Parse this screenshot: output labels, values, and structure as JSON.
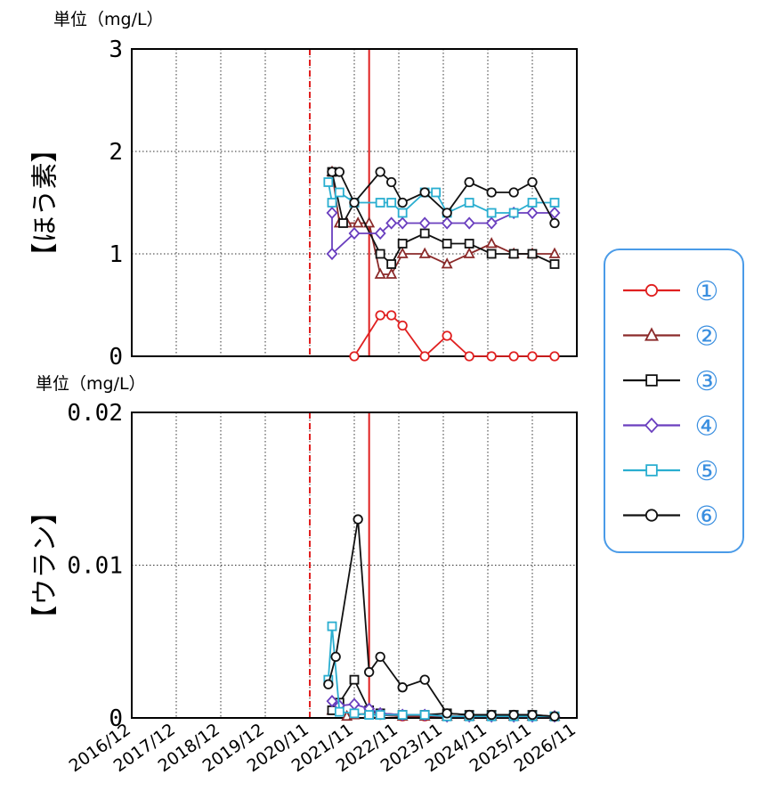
{
  "chart_data": [
    {
      "type": "line",
      "ylabel": "【ほう素】",
      "unit": "単位（mg/L）",
      "ylim": [
        0,
        3
      ],
      "yticks": [
        "0",
        "1",
        "2",
        "3"
      ],
      "ytick_values": [
        0,
        1,
        2,
        3
      ],
      "x_ticks": [
        "2016/12",
        "2017/12",
        "2018/12",
        "2019/12",
        "2020/11",
        "2021/11",
        "2022/11",
        "2023/11",
        "2024/11",
        "2025/11",
        "2026/11"
      ],
      "reference_lines": [
        {
          "x": "2020/11",
          "style": "dashed",
          "color": "#e02020"
        },
        {
          "x": "2022/03",
          "style": "solid",
          "color": "#e02020"
        }
      ],
      "series": [
        {
          "name": "①",
          "marker": "circle",
          "color": "#e02020",
          "x": [
            "2021/11",
            "2022/06",
            "2022/09",
            "2022/12",
            "2023/06",
            "2023/12",
            "2024/06",
            "2024/12",
            "2025/06",
            "2025/11",
            "2026/05"
          ],
          "y": [
            0,
            0.4,
            0.4,
            0.3,
            0,
            0.2,
            0,
            0,
            0,
            0,
            0
          ]
        },
        {
          "name": "②",
          "marker": "triangle",
          "color": "#8b2a2a",
          "x": [
            "2021/05",
            "2021/07",
            "2021/09",
            "2021/12",
            "2022/03",
            "2022/06",
            "2022/09",
            "2022/12",
            "2023/06",
            "2023/12",
            "2024/06",
            "2024/12",
            "2025/06",
            "2025/11",
            "2026/05"
          ],
          "y": [
            1.8,
            1.3,
            1.3,
            1.3,
            1.3,
            0.8,
            0.8,
            1.0,
            1.0,
            0.9,
            1.0,
            1.1,
            1.0,
            1.0,
            1.0
          ]
        },
        {
          "name": "③",
          "marker": "square",
          "color": "#111111",
          "x": [
            "2021/05",
            "2021/08",
            "2021/11",
            "2022/06",
            "2022/09",
            "2022/12",
            "2023/06",
            "2023/12",
            "2024/06",
            "2024/12",
            "2025/06",
            "2025/11",
            "2026/05"
          ],
          "y": [
            1.8,
            1.3,
            1.5,
            1.0,
            0.9,
            1.1,
            1.2,
            1.1,
            1.1,
            1.0,
            1.0,
            1.0,
            0.9
          ]
        },
        {
          "name": "④",
          "marker": "diamond",
          "color": "#6a3fbf",
          "x": [
            "2021/05",
            "2021/05",
            "2021/11",
            "2022/06",
            "2022/09",
            "2022/12",
            "2023/06",
            "2023/12",
            "2024/06",
            "2024/12",
            "2025/06",
            "2025/11",
            "2026/05"
          ],
          "y": [
            1.4,
            1.0,
            1.2,
            1.2,
            1.3,
            1.3,
            1.3,
            1.3,
            1.3,
            1.3,
            1.4,
            1.4,
            1.4
          ]
        },
        {
          "name": "⑤",
          "marker": "square",
          "color": "#2aaed0",
          "x": [
            "2021/04",
            "2021/05",
            "2021/07",
            "2021/11",
            "2022/06",
            "2022/09",
            "2022/12",
            "2023/06",
            "2023/09",
            "2023/12",
            "2024/06",
            "2024/12",
            "2025/06",
            "2025/11",
            "2026/05"
          ],
          "y": [
            1.7,
            1.5,
            1.6,
            1.5,
            1.5,
            1.5,
            1.4,
            1.6,
            1.6,
            1.4,
            1.5,
            1.4,
            1.4,
            1.5,
            1.5
          ]
        },
        {
          "name": "⑥",
          "marker": "circle",
          "color": "#111111",
          "x": [
            "2021/05",
            "2021/07",
            "2021/11",
            "2022/06",
            "2022/09",
            "2022/12",
            "2023/06",
            "2023/12",
            "2024/06",
            "2024/12",
            "2025/06",
            "2025/11",
            "2026/05"
          ],
          "y": [
            1.8,
            1.8,
            1.5,
            1.8,
            1.7,
            1.5,
            1.6,
            1.4,
            1.7,
            1.6,
            1.6,
            1.7,
            1.3
          ]
        }
      ]
    },
    {
      "type": "line",
      "ylabel": "【ウラン】",
      "unit": "単位（mg/L）",
      "ylim": [
        0,
        0.02
      ],
      "yticks": [
        "0",
        "0.01",
        "0.02"
      ],
      "ytick_values": [
        0,
        0.01,
        0.02
      ],
      "x_ticks": [
        "2016/12",
        "2017/12",
        "2018/12",
        "2019/12",
        "2020/11",
        "2021/11",
        "2022/11",
        "2023/11",
        "2024/11",
        "2025/11",
        "2026/11"
      ],
      "reference_lines": [
        {
          "x": "2020/11",
          "style": "dashed",
          "color": "#e02020"
        },
        {
          "x": "2022/03",
          "style": "solid",
          "color": "#e02020"
        }
      ],
      "series": [
        {
          "name": "①",
          "marker": "circle",
          "color": "#e02020",
          "x": [
            "2022/03",
            "2022/06",
            "2022/12",
            "2023/06",
            "2023/12",
            "2024/06",
            "2024/12",
            "2025/06",
            "2025/11",
            "2026/05"
          ],
          "y": [
            0.0003,
            0.0002,
            0.0001,
            0.0001,
            0.0001,
            0.0001,
            0.0001,
            0.0001,
            0.0001,
            0.0001
          ]
        },
        {
          "name": "②",
          "marker": "triangle",
          "color": "#8b2a2a",
          "x": [
            "2021/05",
            "2021/09",
            "2021/11",
            "2022/03",
            "2022/06",
            "2022/12",
            "2023/06",
            "2023/12",
            "2024/06",
            "2024/12",
            "2025/06",
            "2025/11",
            "2026/05"
          ],
          "y": [
            0.0005,
            0.0001,
            0.0002,
            0.0003,
            0.0002,
            0.0001,
            0.0001,
            0.0001,
            0.0001,
            0.0001,
            0.0001,
            0.0001,
            0.0001
          ]
        },
        {
          "name": "③",
          "marker": "square",
          "color": "#111111",
          "x": [
            "2021/05",
            "2021/07",
            "2021/11",
            "2022/03",
            "2022/06",
            "2022/12",
            "2023/06",
            "2023/12",
            "2024/06",
            "2024/12",
            "2025/06",
            "2025/11",
            "2026/05"
          ],
          "y": [
            0.0005,
            0.001,
            0.0025,
            0.0005,
            0.0003,
            0.0002,
            0.0002,
            0.0003,
            0.0002,
            0.0002,
            0.0002,
            0.0002,
            0.0001
          ]
        },
        {
          "name": "④",
          "marker": "diamond",
          "color": "#6a3fbf",
          "x": [
            "2021/05",
            "2021/07",
            "2021/11",
            "2022/03",
            "2022/06",
            "2022/12",
            "2023/06",
            "2023/12",
            "2024/06",
            "2024/12",
            "2025/06",
            "2025/11",
            "2026/05"
          ],
          "y": [
            0.0011,
            0.0008,
            0.0009,
            0.0006,
            0.0003,
            0.0002,
            0.0002,
            0.0001,
            0.0001,
            0.0001,
            0.0001,
            0.0001,
            0.0001
          ]
        },
        {
          "name": "⑤",
          "marker": "square",
          "color": "#2aaed0",
          "x": [
            "2021/04",
            "2021/05",
            "2021/07",
            "2021/11",
            "2022/03",
            "2022/06",
            "2022/12",
            "2023/06",
            "2023/12",
            "2024/06",
            "2024/12",
            "2025/06",
            "2025/11",
            "2026/05"
          ],
          "y": [
            0.0025,
            0.006,
            0.0004,
            0.0003,
            0.0002,
            0.0002,
            0.0002,
            0.0002,
            0.0001,
            0.0001,
            0.0001,
            0.0001,
            0.0001,
            0.0001
          ]
        },
        {
          "name": "⑥",
          "marker": "circle",
          "color": "#111111",
          "x": [
            "2021/04",
            "2021/06",
            "2021/12",
            "2022/03",
            "2022/06",
            "2022/12",
            "2023/06",
            "2023/12",
            "2024/06",
            "2024/12",
            "2025/06",
            "2025/11",
            "2026/05"
          ],
          "y": [
            0.0022,
            0.004,
            0.013,
            0.003,
            0.004,
            0.002,
            0.0025,
            0.0003,
            0.0002,
            0.0002,
            0.0002,
            0.0002,
            0.0001
          ]
        }
      ]
    }
  ],
  "legend": {
    "placement": "right",
    "items": [
      {
        "label": "①",
        "marker": "circle",
        "color": "#e02020"
      },
      {
        "label": "②",
        "marker": "triangle",
        "color": "#8b2a2a"
      },
      {
        "label": "③",
        "marker": "square",
        "color": "#111111"
      },
      {
        "label": "④",
        "marker": "diamond",
        "color": "#6a3fbf"
      },
      {
        "label": "⑤",
        "marker": "square",
        "color": "#2aaed0"
      },
      {
        "label": "⑥",
        "marker": "circle",
        "color": "#111111"
      }
    ]
  },
  "colors": {
    "legend_border": "#4a9be8",
    "legend_text": "#3a8fe0",
    "grid": "#333333",
    "reference": "#e02020"
  }
}
